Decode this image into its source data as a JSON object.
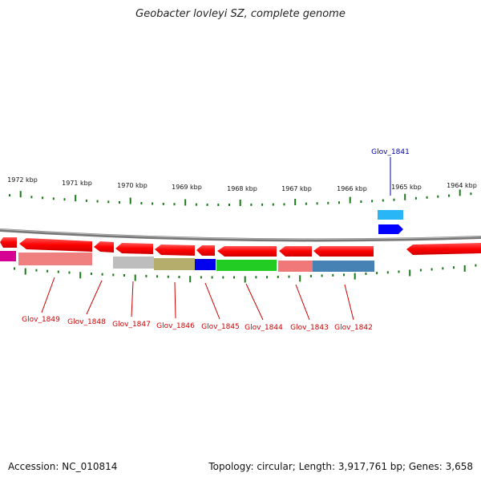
{
  "title": "Geobacter lovleyi SZ, complete genome",
  "footer": {
    "accession": "Accession: NC_010814",
    "summary": "Topology: circular; Length: 3,917,761 bp; Genes: 3,658"
  },
  "kbp_labels": [
    "1972 kbp",
    "1971 kbp",
    "1970 kbp",
    "1969 kbp",
    "1968 kbp",
    "1967 kbp",
    "1966 kbp",
    "1965 kbp",
    "1964 kbp"
  ],
  "gene_labels_bottom": [
    "Glov_1849",
    "Glov_1848",
    "Glov_1847",
    "Glov_1846",
    "Glov_1845",
    "Glov_1844",
    "Glov_1843",
    "Glov_1842"
  ],
  "gene_label_top": "Glov_1841",
  "colors": {
    "arrow_red": "#ff0000",
    "label_red": "#cc0000",
    "label_blue": "#0000aa",
    "backbone": "#888888",
    "tick": "#1a7a1a"
  },
  "feature_colors": [
    "#d60093",
    "#f08080",
    "#bdbdbd",
    "#b5ad6b",
    "#0000ee",
    "#22cc22",
    "#f07878",
    "#4682b4",
    "#29b6f6",
    "#0000ff"
  ]
}
